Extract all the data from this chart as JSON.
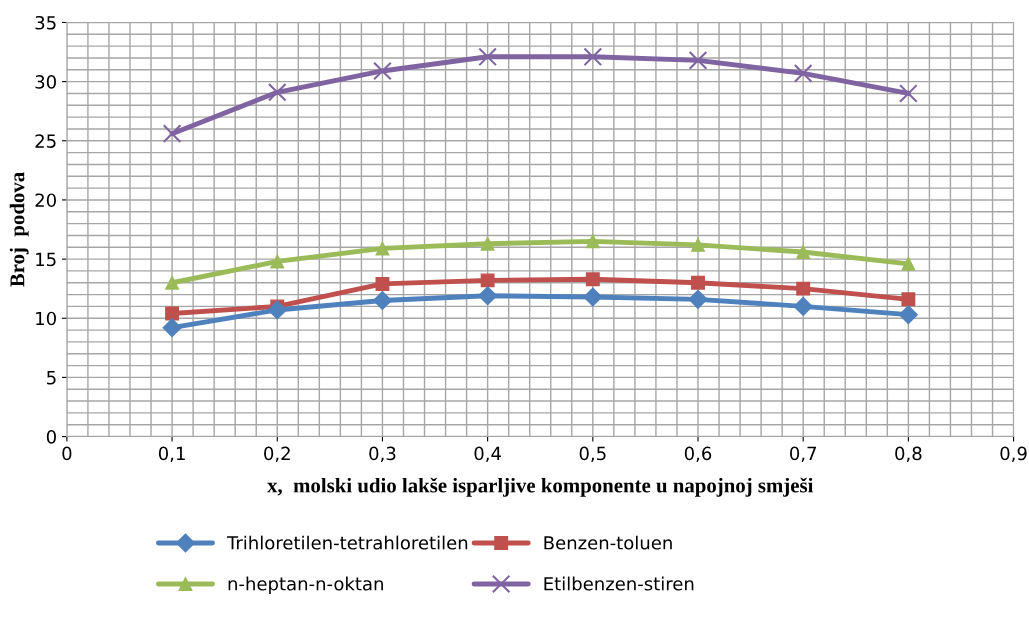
{
  "chart_data": {
    "type": "line",
    "xlabel": "x,  molski udio lakše isparljive komponente u napojnoj smješi",
    "ylabel": "Broj  podova",
    "x": [
      0.1,
      0.2,
      0.3,
      0.4,
      0.5,
      0.6,
      0.7,
      0.8
    ],
    "series": [
      {
        "name": "Trihloretilen-tetrahloretilen",
        "color": "#4f81bd",
        "marker": "diamond",
        "values": [
          9.2,
          10.7,
          11.5,
          11.9,
          11.8,
          11.6,
          11.0,
          10.3
        ]
      },
      {
        "name": "Benzen-toluen",
        "color": "#c0504d",
        "marker": "square",
        "values": [
          10.4,
          11.0,
          12.9,
          13.2,
          13.3,
          13.0,
          12.5,
          11.6
        ]
      },
      {
        "name": "n-heptan-n-oktan",
        "color": "#9bbb59",
        "marker": "triangle",
        "values": [
          13.0,
          14.8,
          15.9,
          16.3,
          16.5,
          16.2,
          15.6,
          14.6
        ]
      },
      {
        "name": "Etilbenzen-stiren",
        "color": "#8064a2",
        "marker": "cross",
        "values": [
          25.6,
          29.1,
          30.9,
          32.1,
          32.1,
          31.8,
          30.7,
          29.0
        ]
      }
    ],
    "xlim": [
      0,
      0.9
    ],
    "xticks": [
      0,
      {
        "value": 0.1,
        "label": "0,1"
      },
      {
        "value": 0.2,
        "label": "0,2"
      },
      {
        "value": 0.3,
        "label": "0,3"
      },
      {
        "value": 0.4,
        "label": "0,4"
      },
      {
        "value": 0.5,
        "label": "0,5"
      },
      {
        "value": 0.6,
        "label": "0,6"
      },
      {
        "value": 0.7,
        "label": "0,7"
      },
      {
        "value": 0.8,
        "label": "0,8"
      },
      {
        "value": 0.9,
        "label": "0,9"
      }
    ],
    "ylim": [
      0,
      35
    ],
    "yticks": [
      0,
      5,
      10,
      15,
      20,
      25,
      30,
      35
    ],
    "grid": true,
    "legend": "bottom",
    "line_style": "solid"
  }
}
